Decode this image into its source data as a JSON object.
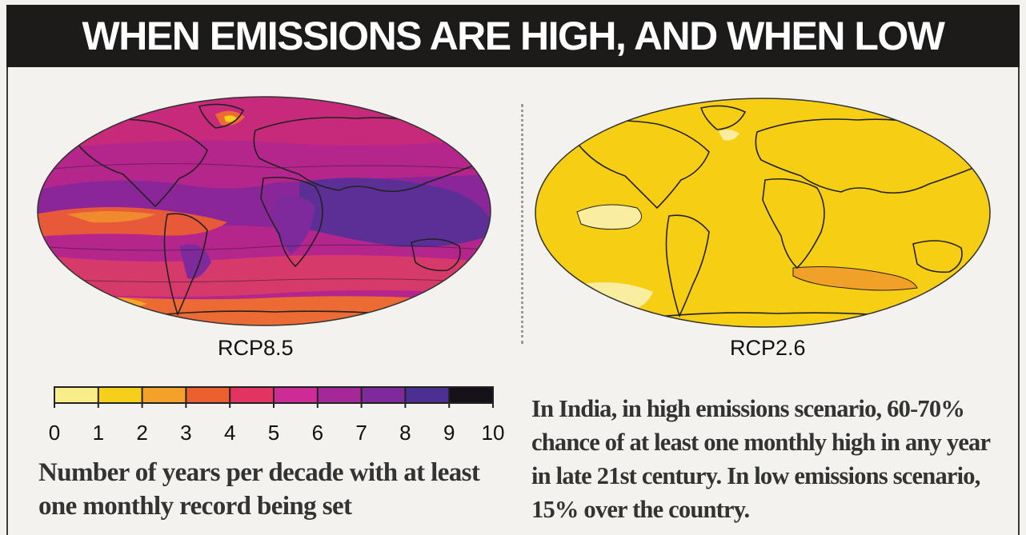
{
  "header": {
    "title": "WHEN EMISSIONS ARE HIGH, AND WHEN LOW"
  },
  "maps": [
    {
      "label": "RCP8.5",
      "ocean_color": "#a8228c",
      "land_outline_color": "#222222"
    },
    {
      "label": "RCP2.6",
      "ocean_color": "#f7cf12",
      "land_outline_color": "#222222"
    }
  ],
  "chart_data": {
    "type": "heatmap",
    "colorbar": {
      "ticks": [
        "0",
        "1",
        "2",
        "3",
        "4",
        "5",
        "6",
        "7",
        "8",
        "9",
        "10"
      ],
      "colors": [
        "#f9ec8a",
        "#f6cf1d",
        "#f3a12b",
        "#ec5f2f",
        "#e2345f",
        "#cd2c97",
        "#a52898",
        "#7e2a9d",
        "#4c2f93",
        "#161019"
      ],
      "range": [
        0,
        10
      ],
      "caption": "Number of years per decade with at least one monthly record being set"
    }
  },
  "note": {
    "text": "In India, in high emissions scenario, 60-70% chance of at least one monthly high in any year in late 21st century. In low emissions scenario, 15% over the country."
  }
}
